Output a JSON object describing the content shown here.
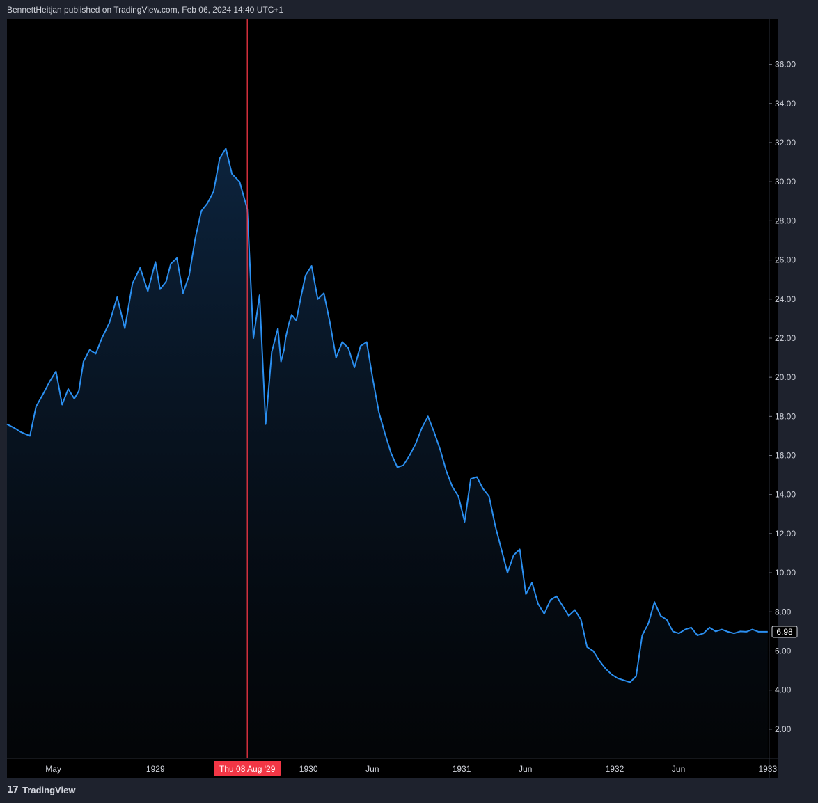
{
  "header": {
    "publisher": "BennettHeitjan published on TradingView.com, Feb 06, 2024 14:40 UTC+1"
  },
  "footer": {
    "brand": "TradingView",
    "logo_glyph": "17"
  },
  "colors": {
    "line": "#2b8ff0",
    "crosshair": "#f23645",
    "axis_text": "#d1d4dc",
    "background": "#000000"
  },
  "chart_data": {
    "type": "area",
    "title": "",
    "xlabel": "",
    "ylabel": "",
    "x_ticks": [
      {
        "label": "May",
        "t": 1928.333
      },
      {
        "label": "1929",
        "t": 1929.0
      },
      {
        "label": "1930",
        "t": 1930.0
      },
      {
        "label": "Jun",
        "t": 1930.417
      },
      {
        "label": "1931",
        "t": 1931.0
      },
      {
        "label": "Jun",
        "t": 1931.417
      },
      {
        "label": "1932",
        "t": 1932.0
      },
      {
        "label": "Jun",
        "t": 1932.417
      },
      {
        "label": "1933",
        "t": 1933.0
      }
    ],
    "y_ticks": [
      "2.00",
      "4.00",
      "6.00",
      "8.00",
      "10.00",
      "12.00",
      "14.00",
      "16.00",
      "18.00",
      "20.00",
      "22.00",
      "24.00",
      "26.00",
      "28.00",
      "30.00",
      "32.00",
      "34.00",
      "36.00"
    ],
    "ylim": [
      0.5,
      38.3
    ],
    "xlim": [
      1928.03,
      1933.01
    ],
    "crosshair": {
      "t": 1929.6,
      "label": "Thu 08 Aug '29"
    },
    "last_value_label": "6.98",
    "series": [
      {
        "x": [
          1928.03,
          1928.08,
          1928.12,
          1928.18,
          1928.22,
          1928.27,
          1928.31,
          1928.35,
          1928.39,
          1928.43,
          1928.47,
          1928.5,
          1928.53,
          1928.57,
          1928.61,
          1928.65,
          1928.7,
          1928.75,
          1928.8,
          1928.85,
          1928.9,
          1928.95,
          1929.0,
          1929.03,
          1929.07,
          1929.1,
          1929.14,
          1929.18,
          1929.22,
          1929.26,
          1929.3,
          1929.34,
          1929.38,
          1929.42,
          1929.46,
          1929.5,
          1929.55,
          1929.6,
          1929.64,
          1929.68,
          1929.72,
          1929.76,
          1929.8,
          1929.82,
          1929.84,
          1929.85,
          1929.87,
          1929.89,
          1929.92,
          1929.95,
          1929.98,
          1930.02,
          1930.06,
          1930.1,
          1930.14,
          1930.18,
          1930.22,
          1930.26,
          1930.3,
          1930.34,
          1930.38,
          1930.42,
          1930.46,
          1930.5,
          1930.54,
          1930.58,
          1930.62,
          1930.66,
          1930.7,
          1930.74,
          1930.78,
          1930.82,
          1930.86,
          1930.9,
          1930.94,
          1930.98,
          1931.02,
          1931.06,
          1931.1,
          1931.14,
          1931.18,
          1931.22,
          1931.26,
          1931.3,
          1931.34,
          1931.38,
          1931.42,
          1931.46,
          1931.5,
          1931.54,
          1931.58,
          1931.62,
          1931.66,
          1931.7,
          1931.74,
          1931.78,
          1931.82,
          1931.86,
          1931.9,
          1931.94,
          1931.98,
          1932.02,
          1932.06,
          1932.1,
          1932.14,
          1932.18,
          1932.22,
          1932.26,
          1932.3,
          1932.34,
          1932.38,
          1932.42,
          1932.46,
          1932.5,
          1932.54,
          1932.58,
          1932.62,
          1932.66,
          1932.7,
          1932.74,
          1932.78,
          1932.82,
          1932.86,
          1932.9,
          1932.94,
          1932.98,
          1933.0
        ],
        "values": [
          17.6,
          17.4,
          17.2,
          17.0,
          18.5,
          19.2,
          19.8,
          20.3,
          18.6,
          19.4,
          18.9,
          19.3,
          20.8,
          21.4,
          21.2,
          22.0,
          22.8,
          24.1,
          22.5,
          24.8,
          25.6,
          24.4,
          25.9,
          24.5,
          24.9,
          25.8,
          26.1,
          24.3,
          25.2,
          27.1,
          28.5,
          28.9,
          29.5,
          31.2,
          31.7,
          30.4,
          30.0,
          28.6,
          22.0,
          24.2,
          17.6,
          21.3,
          22.5,
          20.8,
          21.4,
          22.0,
          22.7,
          23.2,
          22.9,
          24.1,
          25.2,
          25.7,
          24.0,
          24.3,
          22.8,
          21.0,
          21.8,
          21.5,
          20.5,
          21.6,
          21.8,
          19.9,
          18.2,
          17.1,
          16.1,
          15.4,
          15.5,
          16.0,
          16.6,
          17.4,
          18.0,
          17.2,
          16.3,
          15.2,
          14.4,
          13.9,
          12.6,
          14.8,
          14.9,
          14.3,
          13.9,
          12.4,
          11.2,
          10.0,
          10.9,
          11.2,
          8.9,
          9.5,
          8.4,
          7.9,
          8.6,
          8.8,
          8.3,
          7.8,
          8.1,
          7.6,
          6.2,
          6.0,
          5.5,
          5.1,
          4.8,
          4.6,
          4.5,
          4.4,
          4.7,
          6.8,
          7.4,
          8.5,
          7.8,
          7.6,
          7.0,
          6.9,
          7.1,
          7.2,
          6.8,
          6.9,
          7.2,
          7.0,
          7.1,
          6.98,
          6.9,
          7.0,
          6.98,
          7.1,
          6.98,
          6.98,
          6.98
        ]
      }
    ]
  }
}
